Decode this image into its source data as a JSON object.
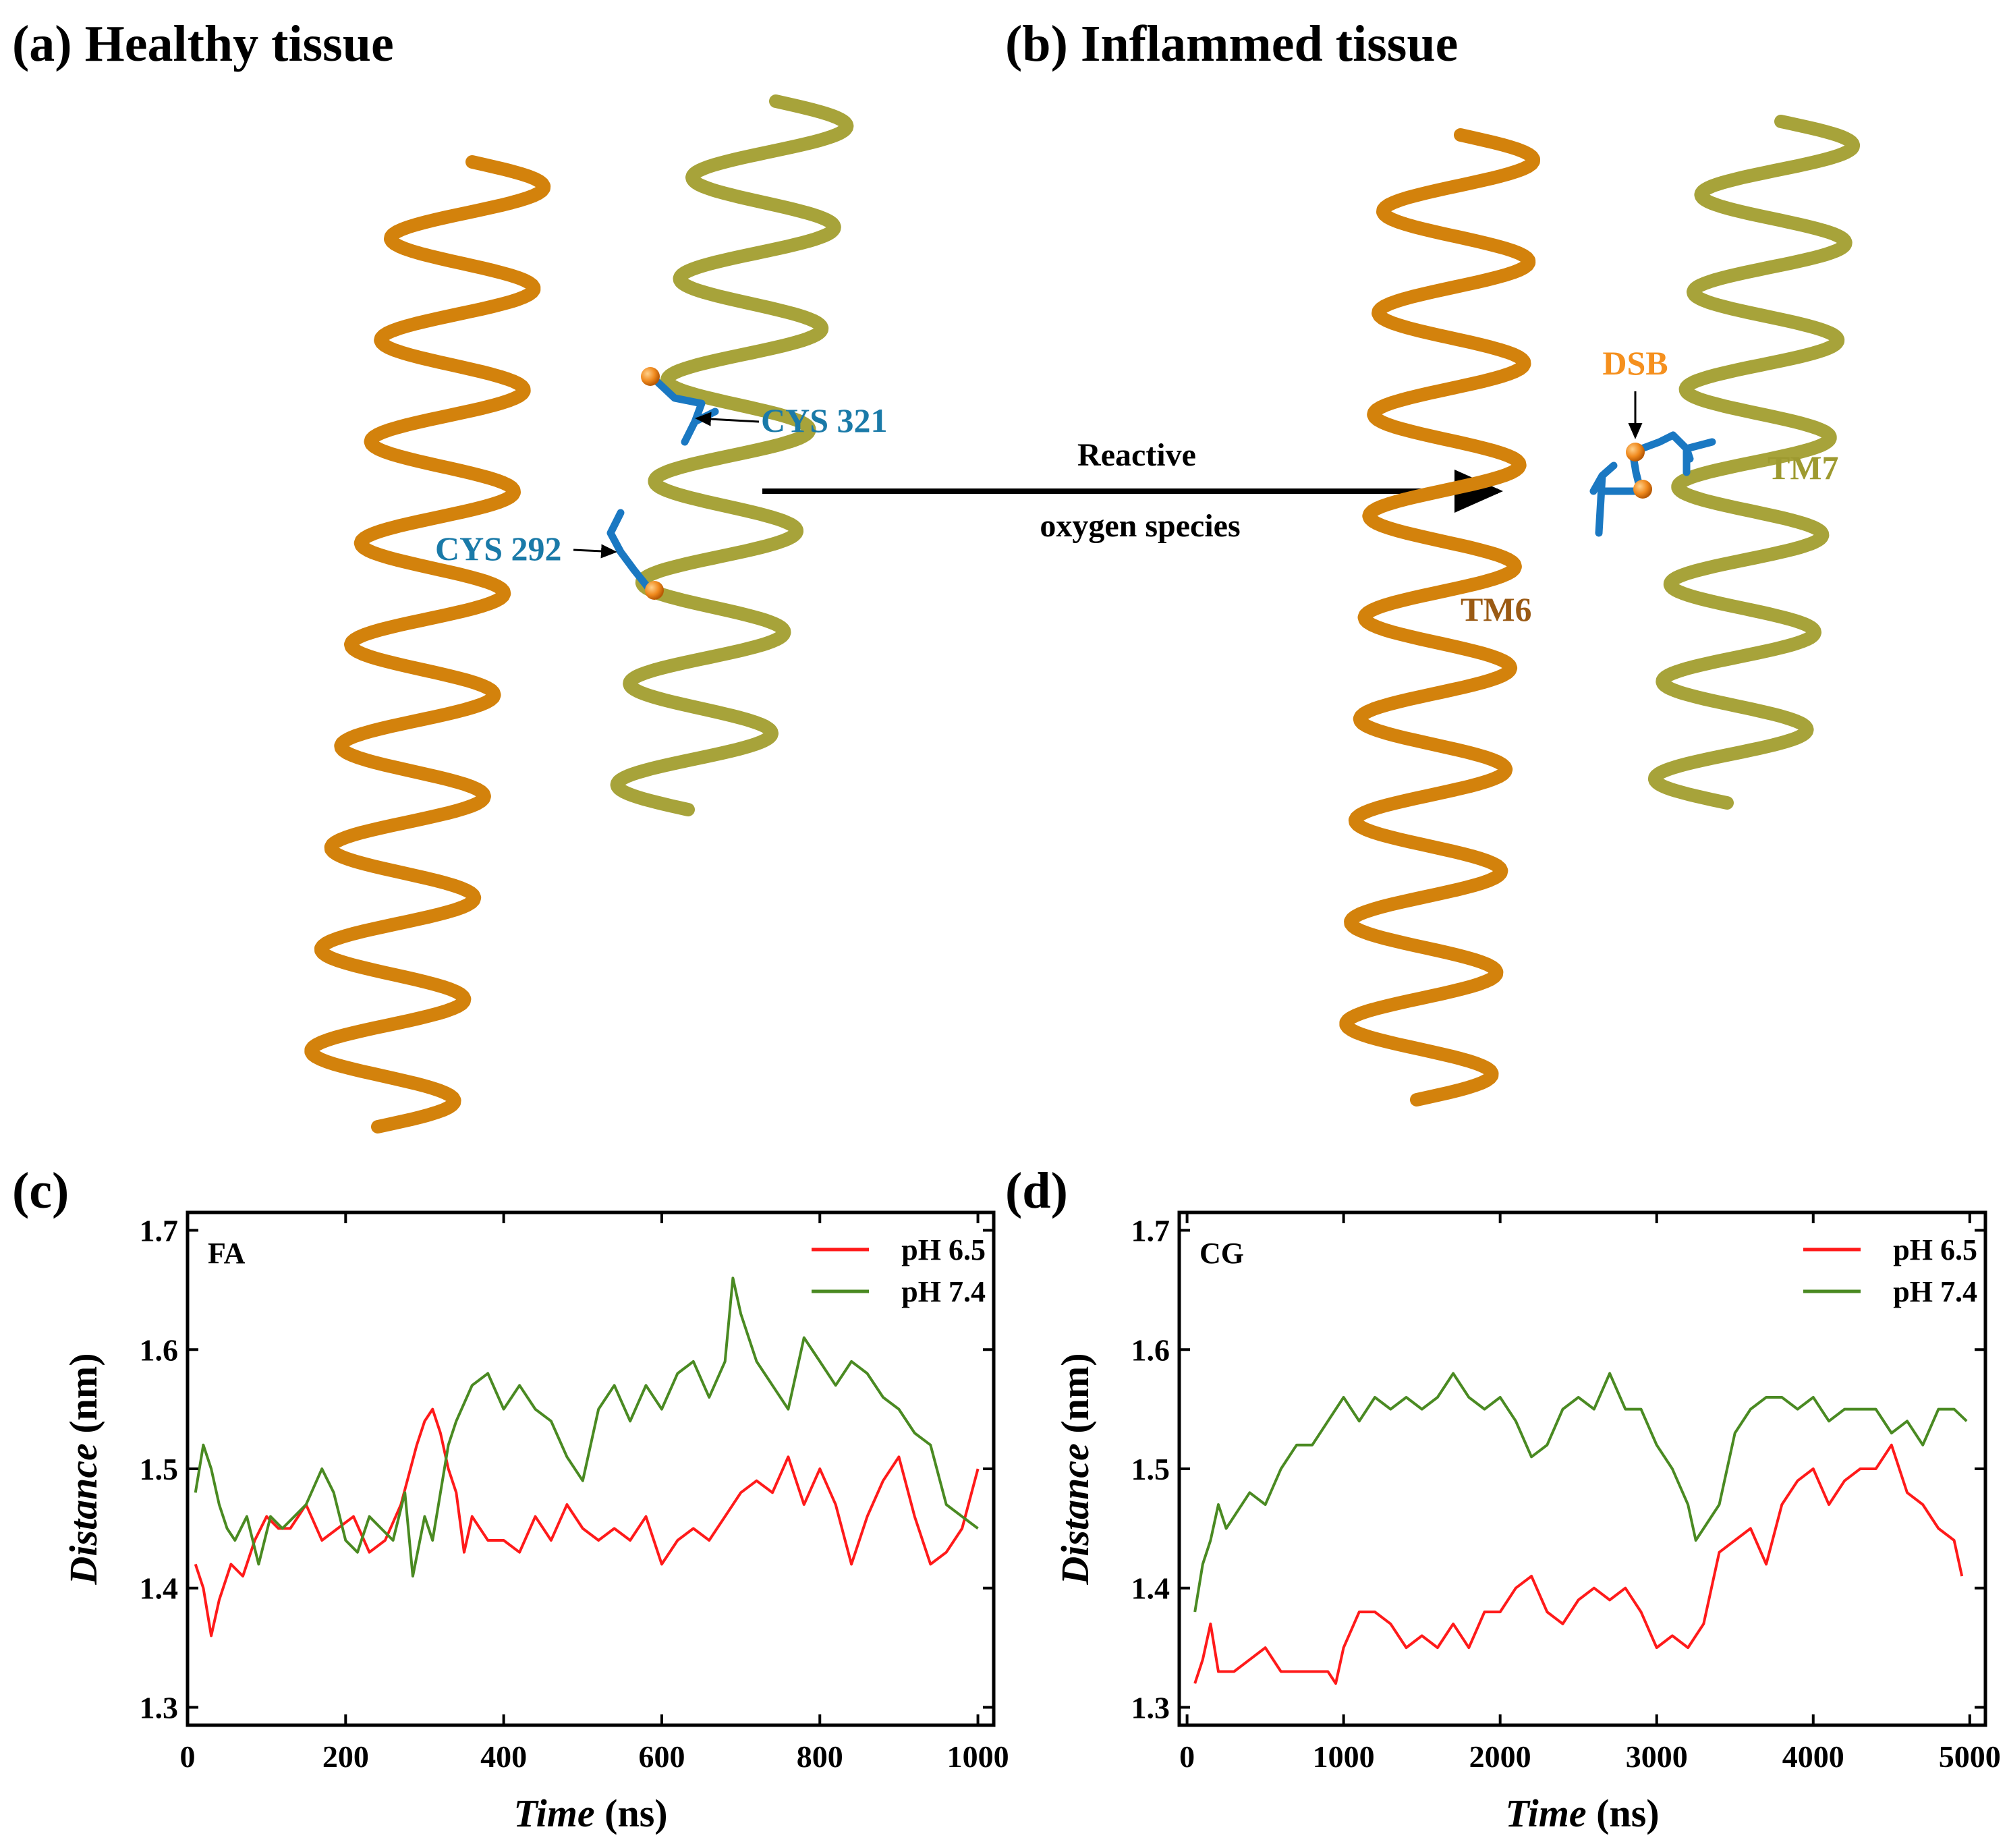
{
  "panels": {
    "a": {
      "title": "(a) Healthy tissue",
      "cys1": "CYS 321",
      "cys2": "CYS 292"
    },
    "b": {
      "title": "(b) Inflammed tissue",
      "dsb": "DSB",
      "tm6": "TM6",
      "tm7": "TM7"
    },
    "arrow": {
      "line1": "Reactive",
      "line2": "oxygen species"
    },
    "c": {
      "letter": "(c)"
    },
    "d": {
      "letter": "(d)"
    }
  },
  "colors": {
    "tm6_helix": "#d3820c",
    "tm7_helix": "#a7a33a",
    "cys": "#1a78c2",
    "sulfur": "#f08a1e",
    "cys_label": "#1a7aa8",
    "dsb_label": "#f5901e",
    "tm6_label": "#9a5a14",
    "tm7_label": "#9e9a30",
    "ph65": "#ff1a1a",
    "ph74": "#4a8a22"
  },
  "chart_data": [
    {
      "type": "line",
      "panel": "c",
      "title": "FA",
      "xlabel_italic": "Time",
      "xlabel_unit": " (ns)",
      "ylabel_italic": "Distance",
      "ylabel_unit": " (nm)",
      "xlim": [
        0,
        1020
      ],
      "ylim": [
        1.285,
        1.715
      ],
      "xticks": [
        0,
        200,
        400,
        600,
        800,
        1000
      ],
      "yticks": [
        1.3,
        1.4,
        1.5,
        1.6,
        1.7
      ],
      "series": [
        {
          "name": "pH 6.5",
          "color": "#ff1a1a",
          "x": [
            10,
            20,
            30,
            40,
            55,
            70,
            85,
            100,
            115,
            130,
            150,
            170,
            190,
            210,
            230,
            250,
            270,
            290,
            300,
            310,
            320,
            330,
            340,
            350,
            360,
            380,
            400,
            420,
            440,
            460,
            480,
            500,
            520,
            540,
            560,
            580,
            600,
            620,
            640,
            660,
            680,
            700,
            720,
            740,
            760,
            780,
            800,
            820,
            840,
            860,
            880,
            900,
            920,
            940,
            960,
            980,
            1000
          ],
          "y": [
            1.42,
            1.4,
            1.36,
            1.39,
            1.42,
            1.41,
            1.44,
            1.46,
            1.45,
            1.45,
            1.47,
            1.44,
            1.45,
            1.46,
            1.43,
            1.44,
            1.47,
            1.52,
            1.54,
            1.55,
            1.53,
            1.5,
            1.48,
            1.43,
            1.46,
            1.44,
            1.44,
            1.43,
            1.46,
            1.44,
            1.47,
            1.45,
            1.44,
            1.45,
            1.44,
            1.46,
            1.42,
            1.44,
            1.45,
            1.44,
            1.46,
            1.48,
            1.49,
            1.48,
            1.51,
            1.47,
            1.5,
            1.47,
            1.42,
            1.46,
            1.49,
            1.51,
            1.46,
            1.42,
            1.43,
            1.45,
            1.5
          ]
        },
        {
          "name": "pH 7.4",
          "color": "#4a8a22",
          "x": [
            10,
            20,
            30,
            40,
            50,
            60,
            75,
            90,
            105,
            120,
            135,
            150,
            170,
            185,
            200,
            215,
            230,
            245,
            260,
            275,
            285,
            300,
            310,
            320,
            330,
            340,
            360,
            380,
            400,
            420,
            440,
            460,
            480,
            500,
            520,
            540,
            560,
            580,
            600,
            620,
            640,
            660,
            680,
            690,
            700,
            720,
            740,
            760,
            780,
            800,
            820,
            840,
            860,
            880,
            900,
            920,
            940,
            960,
            980,
            1000
          ],
          "y": [
            1.48,
            1.52,
            1.5,
            1.47,
            1.45,
            1.44,
            1.46,
            1.42,
            1.46,
            1.45,
            1.46,
            1.47,
            1.5,
            1.48,
            1.44,
            1.43,
            1.46,
            1.45,
            1.44,
            1.48,
            1.41,
            1.46,
            1.44,
            1.48,
            1.52,
            1.54,
            1.57,
            1.58,
            1.55,
            1.57,
            1.55,
            1.54,
            1.51,
            1.49,
            1.55,
            1.57,
            1.54,
            1.57,
            1.55,
            1.58,
            1.59,
            1.56,
            1.59,
            1.66,
            1.63,
            1.59,
            1.57,
            1.55,
            1.61,
            1.59,
            1.57,
            1.59,
            1.58,
            1.56,
            1.55,
            1.53,
            1.52,
            1.47,
            1.46,
            1.45
          ]
        }
      ],
      "legend": "top-right"
    },
    {
      "type": "line",
      "panel": "d",
      "title": "CG",
      "xlabel_italic": "Time",
      "xlabel_unit": " (ns)",
      "ylabel_italic": "Distance",
      "ylabel_unit": " (nm)",
      "xlim": [
        -50,
        5100
      ],
      "ylim": [
        1.285,
        1.715
      ],
      "xticks": [
        0,
        1000,
        2000,
        3000,
        4000,
        5000
      ],
      "yticks": [
        1.3,
        1.4,
        1.5,
        1.6,
        1.7
      ],
      "series": [
        {
          "name": "pH 6.5",
          "color": "#ff1a1a",
          "x": [
            50,
            100,
            150,
            200,
            300,
            400,
            500,
            600,
            700,
            800,
            900,
            950,
            1000,
            1100,
            1200,
            1300,
            1400,
            1500,
            1600,
            1700,
            1800,
            1900,
            2000,
            2100,
            2200,
            2300,
            2400,
            2500,
            2600,
            2700,
            2800,
            2900,
            3000,
            3100,
            3200,
            3300,
            3400,
            3500,
            3600,
            3700,
            3800,
            3900,
            4000,
            4100,
            4200,
            4300,
            4400,
            4500,
            4600,
            4700,
            4800,
            4900,
            4950
          ],
          "y": [
            1.32,
            1.34,
            1.37,
            1.33,
            1.33,
            1.34,
            1.35,
            1.33,
            1.33,
            1.33,
            1.33,
            1.32,
            1.35,
            1.38,
            1.38,
            1.37,
            1.35,
            1.36,
            1.35,
            1.37,
            1.35,
            1.38,
            1.38,
            1.4,
            1.41,
            1.38,
            1.37,
            1.39,
            1.4,
            1.39,
            1.4,
            1.38,
            1.35,
            1.36,
            1.35,
            1.37,
            1.43,
            1.44,
            1.45,
            1.42,
            1.47,
            1.49,
            1.5,
            1.47,
            1.49,
            1.5,
            1.5,
            1.52,
            1.48,
            1.47,
            1.45,
            1.44,
            1.41
          ]
        },
        {
          "name": "pH 7.4",
          "color": "#4a8a22",
          "x": [
            50,
            100,
            150,
            200,
            250,
            300,
            400,
            500,
            600,
            700,
            800,
            900,
            1000,
            1100,
            1200,
            1300,
            1400,
            1500,
            1600,
            1700,
            1800,
            1900,
            2000,
            2100,
            2200,
            2300,
            2400,
            2500,
            2600,
            2700,
            2800,
            2900,
            3000,
            3100,
            3200,
            3250,
            3300,
            3400,
            3500,
            3600,
            3700,
            3800,
            3900,
            4000,
            4100,
            4200,
            4300,
            4400,
            4500,
            4600,
            4700,
            4800,
            4900,
            4980
          ],
          "y": [
            1.38,
            1.42,
            1.44,
            1.47,
            1.45,
            1.46,
            1.48,
            1.47,
            1.5,
            1.52,
            1.52,
            1.54,
            1.56,
            1.54,
            1.56,
            1.55,
            1.56,
            1.55,
            1.56,
            1.58,
            1.56,
            1.55,
            1.56,
            1.54,
            1.51,
            1.52,
            1.55,
            1.56,
            1.55,
            1.58,
            1.55,
            1.55,
            1.52,
            1.5,
            1.47,
            1.44,
            1.45,
            1.47,
            1.53,
            1.55,
            1.56,
            1.56,
            1.55,
            1.56,
            1.54,
            1.55,
            1.55,
            1.55,
            1.53,
            1.54,
            1.52,
            1.55,
            1.55,
            1.54
          ]
        }
      ],
      "legend": "top-right"
    }
  ]
}
